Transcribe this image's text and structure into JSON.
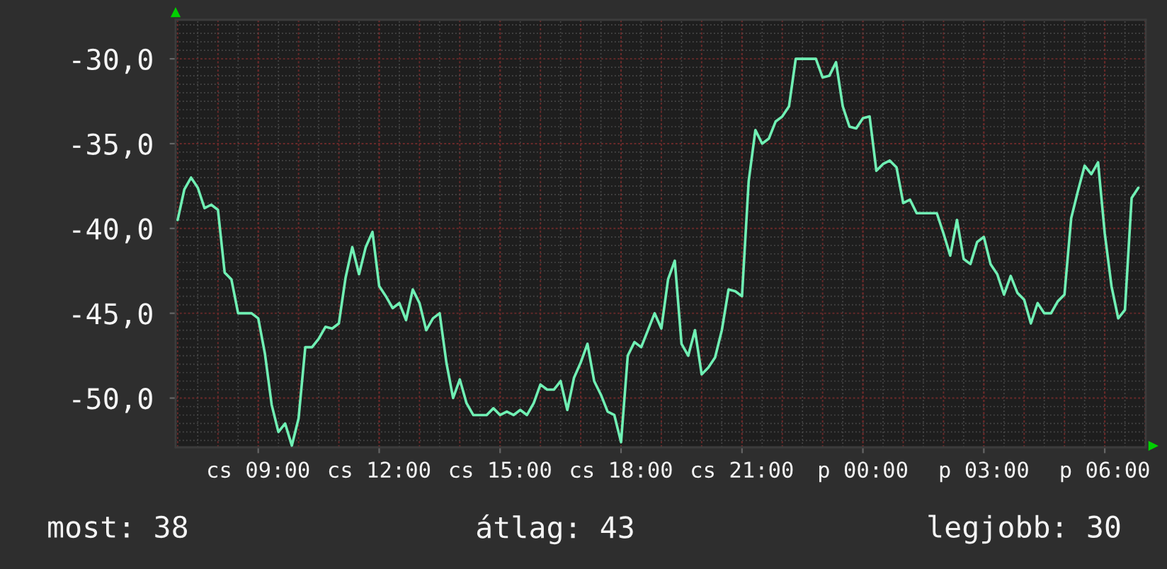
{
  "chart_data": {
    "type": "line",
    "categories": [
      null,
      null,
      null,
      null,
      null,
      null,
      null,
      null,
      null,
      null,
      null,
      null,
      "cs 09:00",
      null,
      null,
      null,
      null,
      null,
      null,
      null,
      null,
      null,
      null,
      null,
      null,
      null,
      null,
      null,
      null,
      null,
      "cs 12:00",
      null,
      null,
      null,
      null,
      null,
      null,
      null,
      null,
      null,
      null,
      null,
      null,
      null,
      null,
      null,
      null,
      null,
      "cs 15:00",
      null,
      null,
      null,
      null,
      null,
      null,
      null,
      null,
      null,
      null,
      null,
      null,
      null,
      null,
      null,
      null,
      null,
      "cs 18:00",
      null,
      null,
      null,
      null,
      null,
      null,
      null,
      null,
      null,
      null,
      null,
      null,
      null,
      null,
      null,
      null,
      null,
      "cs 21:00",
      null,
      null,
      null,
      null,
      null,
      null,
      null,
      null,
      null,
      null,
      null,
      null,
      null,
      null,
      null,
      null,
      null,
      "p 00:00",
      null,
      null,
      null,
      null,
      null,
      null,
      null,
      null,
      null,
      null,
      null,
      null,
      null,
      null,
      null,
      null,
      null,
      "p 03:00",
      null,
      null,
      null,
      null,
      null,
      null,
      null,
      null,
      null,
      null,
      null,
      null,
      null,
      null,
      null,
      null,
      null,
      "p 06:00",
      null,
      null,
      null,
      null,
      null
    ],
    "series": [
      {
        "color": "#70f0b4",
        "values": [
          -39.5,
          -37.7,
          -37.0,
          -37.6,
          -38.8,
          -38.6,
          -38.9,
          -42.6,
          -43.0,
          -45.0,
          -45.0,
          -45.0,
          -45.3,
          -47.4,
          -50.4,
          -52.0,
          -51.5,
          -52.8,
          -51.2,
          -47.0,
          -47.0,
          -46.5,
          -45.8,
          -45.9,
          -45.6,
          -42.9,
          -41.1,
          -42.7,
          -41.1,
          -40.2,
          -43.4,
          -44.0,
          -44.7,
          -44.4,
          -45.4,
          -43.6,
          -44.4,
          -46.0,
          -45.3,
          -45.0,
          -47.9,
          -50.0,
          -48.9,
          -50.3,
          -51.0,
          -51.0,
          -51.0,
          -50.6,
          -51.0,
          -50.8,
          -51.0,
          -50.7,
          -51.0,
          -50.3,
          -49.2,
          -49.5,
          -49.5,
          -49.0,
          -50.7,
          -48.8,
          -47.9,
          -46.8,
          -49.0,
          -49.8,
          -50.8,
          -51.0,
          -52.6,
          -47.5,
          -46.7,
          -47.0,
          -46.0,
          -45.0,
          -45.9,
          -43.0,
          -41.9,
          -46.8,
          -47.5,
          -46.0,
          -48.6,
          -48.2,
          -47.6,
          -46.0,
          -43.6,
          -43.7,
          -44.0,
          -37.2,
          -34.2,
          -35.0,
          -34.7,
          -33.7,
          -33.4,
          -32.8,
          -30.0,
          -30.0,
          -30.0,
          -30.0,
          -31.1,
          -31.0,
          -30.2,
          -32.8,
          -34.0,
          -34.1,
          -33.5,
          -33.4,
          -36.6,
          -36.2,
          -36.0,
          -36.4,
          -38.5,
          -38.3,
          -39.1,
          -39.1,
          -39.1,
          -39.1,
          -40.3,
          -41.6,
          -39.5,
          -41.8,
          -42.1,
          -40.8,
          -40.5,
          -42.1,
          -42.7,
          -43.9,
          -42.8,
          -43.8,
          -44.2,
          -45.6,
          -44.4,
          -45.0,
          -45.0,
          -44.3,
          -43.9,
          -39.4,
          -37.8,
          -36.3,
          -36.8,
          -36.1,
          -40.3,
          -43.4,
          -45.3,
          -44.8,
          -38.2,
          -37.6
        ]
      }
    ],
    "ylim": [
      -52.9,
      -27.7
    ],
    "yticks": [
      {
        "value": -30,
        "label": "-30,0"
      },
      {
        "value": -35,
        "label": "-35,0"
      },
      {
        "value": -40,
        "label": "-40,0"
      },
      {
        "value": -45,
        "label": "-45,0"
      },
      {
        "value": -50,
        "label": "-50,0"
      }
    ],
    "grid": true,
    "line_style": "solid",
    "annotations": [
      "most: 38",
      "átlag: 43",
      "legjobb: 30"
    ]
  }
}
